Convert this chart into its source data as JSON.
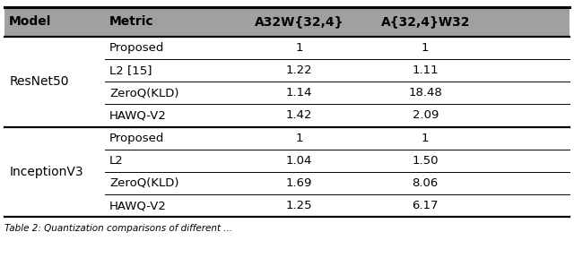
{
  "header": [
    "Model",
    "Metric",
    "A32W{32,4}",
    "A{32,4}W32"
  ],
  "rows": [
    [
      "ResNet50",
      "Proposed",
      "1",
      "1"
    ],
    [
      "ResNet50",
      "L2 [15]",
      "1.22",
      "1.11"
    ],
    [
      "ResNet50",
      "ZeroQ(KLD)",
      "1.14",
      "18.48"
    ],
    [
      "ResNet50",
      "HAWQ-V2",
      "1.42",
      "2.09"
    ],
    [
      "InceptionV3",
      "Proposed",
      "1",
      "1"
    ],
    [
      "InceptionV3",
      "L2",
      "1.04",
      "1.50"
    ],
    [
      "InceptionV3",
      "ZeroQ(KLD)",
      "1.69",
      "8.06"
    ],
    [
      "InceptionV3",
      "HAWQ-V2",
      "1.25",
      "6.17"
    ]
  ],
  "header_bg": "#a0a0a0",
  "fig_bg": "#ffffff",
  "font_size": 9.5,
  "header_font_size": 10,
  "caption": "Table 2: Quantization comparisons of different ..."
}
